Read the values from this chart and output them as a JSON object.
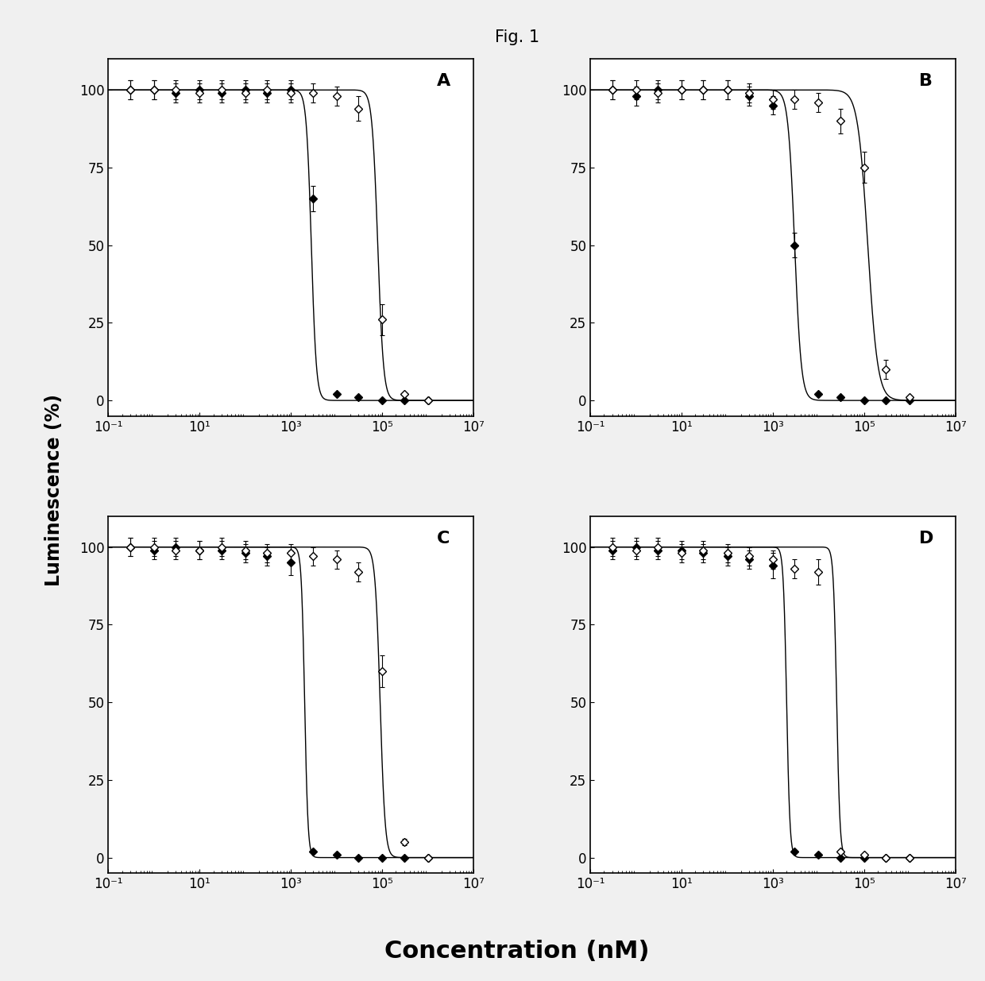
{
  "title": "Fig. 1",
  "panels": [
    "A",
    "B",
    "C",
    "D"
  ],
  "xlabel": "Concentration (nM)",
  "ylabel": "Luminescence (%)",
  "xlim": [
    0.1,
    10000000.0
  ],
  "ylim": [
    -5,
    110
  ],
  "yticks": [
    0,
    25,
    50,
    75,
    100
  ],
  "xticks": [
    0.1,
    10,
    1000,
    100000,
    10000000
  ],
  "xticklabels": [
    "10⁻¹",
    "10¹",
    "10³",
    "10⁵",
    "10⁷"
  ],
  "background_color": "#f0f0f0",
  "panel_bg": "#ffffff",
  "panel_label_fontsize": 16,
  "axis_label_fontsize": 17,
  "tick_fontsize": 12,
  "title_fontsize": 15,
  "panel_data": {
    "A": {
      "filled_x": [
        0.3,
        1,
        3,
        10,
        30,
        100,
        300,
        1000,
        3000,
        10000,
        30000,
        100000,
        300000,
        1000000
      ],
      "filled_y": [
        100,
        100,
        99,
        100,
        99,
        100,
        99,
        100,
        65,
        2,
        1,
        0,
        0,
        0
      ],
      "filled_err": [
        3,
        3,
        3,
        3,
        3,
        3,
        3,
        3,
        4,
        0.5,
        0.5,
        0.5,
        0.5,
        0.5
      ],
      "open_x": [
        0.3,
        1,
        3,
        10,
        30,
        100,
        300,
        1000,
        3000,
        10000,
        30000,
        100000,
        300000,
        1000000
      ],
      "open_y": [
        100,
        100,
        100,
        99,
        100,
        99,
        100,
        99,
        99,
        98,
        94,
        26,
        2,
        0
      ],
      "open_err": [
        3,
        3,
        3,
        3,
        3,
        3,
        3,
        3,
        3,
        3,
        4,
        5,
        0.5,
        0.5
      ],
      "filled_ic50": 2800,
      "open_ic50": 80000,
      "filled_hill": 8,
      "open_hill": 7
    },
    "B": {
      "filled_x": [
        0.3,
        1,
        3,
        10,
        30,
        100,
        300,
        1000,
        3000,
        10000,
        30000,
        100000,
        300000,
        1000000
      ],
      "filled_y": [
        100,
        98,
        100,
        100,
        100,
        100,
        98,
        95,
        50,
        2,
        1,
        0,
        0,
        0
      ],
      "filled_err": [
        3,
        3,
        3,
        3,
        3,
        3,
        3,
        3,
        4,
        0.5,
        0.5,
        0.5,
        0.5,
        0.5
      ],
      "open_x": [
        0.3,
        1,
        3,
        10,
        30,
        100,
        300,
        1000,
        3000,
        10000,
        30000,
        100000,
        300000,
        1000000
      ],
      "open_y": [
        100,
        100,
        99,
        100,
        100,
        100,
        99,
        97,
        97,
        96,
        90,
        75,
        10,
        1
      ],
      "open_err": [
        3,
        3,
        3,
        3,
        3,
        3,
        3,
        3,
        3,
        3,
        4,
        5,
        3,
        0.5
      ],
      "filled_ic50": 3000,
      "open_ic50": 120000,
      "filled_hill": 6,
      "open_hill": 4
    },
    "C": {
      "filled_x": [
        0.3,
        1,
        3,
        10,
        30,
        100,
        300,
        1000,
        3000,
        10000,
        30000,
        100000,
        300000,
        1000000
      ],
      "filled_y": [
        100,
        99,
        100,
        99,
        99,
        98,
        97,
        95,
        2,
        1,
        0,
        0,
        0,
        0
      ],
      "filled_err": [
        3,
        3,
        3,
        3,
        3,
        3,
        3,
        4,
        0.5,
        0.5,
        0.5,
        0.5,
        0.5,
        0.5
      ],
      "open_x": [
        0.3,
        1,
        3,
        10,
        30,
        100,
        300,
        1000,
        3000,
        10000,
        30000,
        100000,
        300000,
        1000000
      ],
      "open_y": [
        100,
        100,
        99,
        99,
        100,
        99,
        98,
        98,
        97,
        96,
        92,
        60,
        5,
        0
      ],
      "open_err": [
        3,
        3,
        3,
        3,
        3,
        3,
        3,
        3,
        3,
        3,
        3,
        5,
        1,
        0.5
      ],
      "filled_ic50": 2000,
      "open_ic50": 90000,
      "filled_hill": 12,
      "open_hill": 8
    },
    "D": {
      "filled_x": [
        0.3,
        1,
        3,
        10,
        30,
        100,
        300,
        1000,
        3000,
        10000,
        30000,
        100000,
        300000,
        1000000
      ],
      "filled_y": [
        99,
        100,
        99,
        99,
        98,
        97,
        96,
        94,
        2,
        1,
        0,
        0,
        0,
        0
      ],
      "filled_err": [
        3,
        3,
        3,
        3,
        3,
        3,
        3,
        4,
        0.5,
        0.5,
        0.5,
        0.5,
        0.5,
        0.5
      ],
      "open_x": [
        0.3,
        1,
        3,
        10,
        30,
        100,
        300,
        1000,
        3000,
        10000,
        30000,
        100000,
        300000,
        1000000
      ],
      "open_y": [
        100,
        99,
        100,
        98,
        99,
        98,
        97,
        96,
        93,
        92,
        2,
        1,
        0,
        0
      ],
      "open_err": [
        3,
        3,
        3,
        3,
        3,
        3,
        3,
        3,
        3,
        4,
        0.5,
        0.5,
        0.5,
        0.5
      ],
      "filled_ic50": 2000,
      "open_ic50": 25000,
      "filled_hill": 12,
      "open_hill": 12
    }
  }
}
